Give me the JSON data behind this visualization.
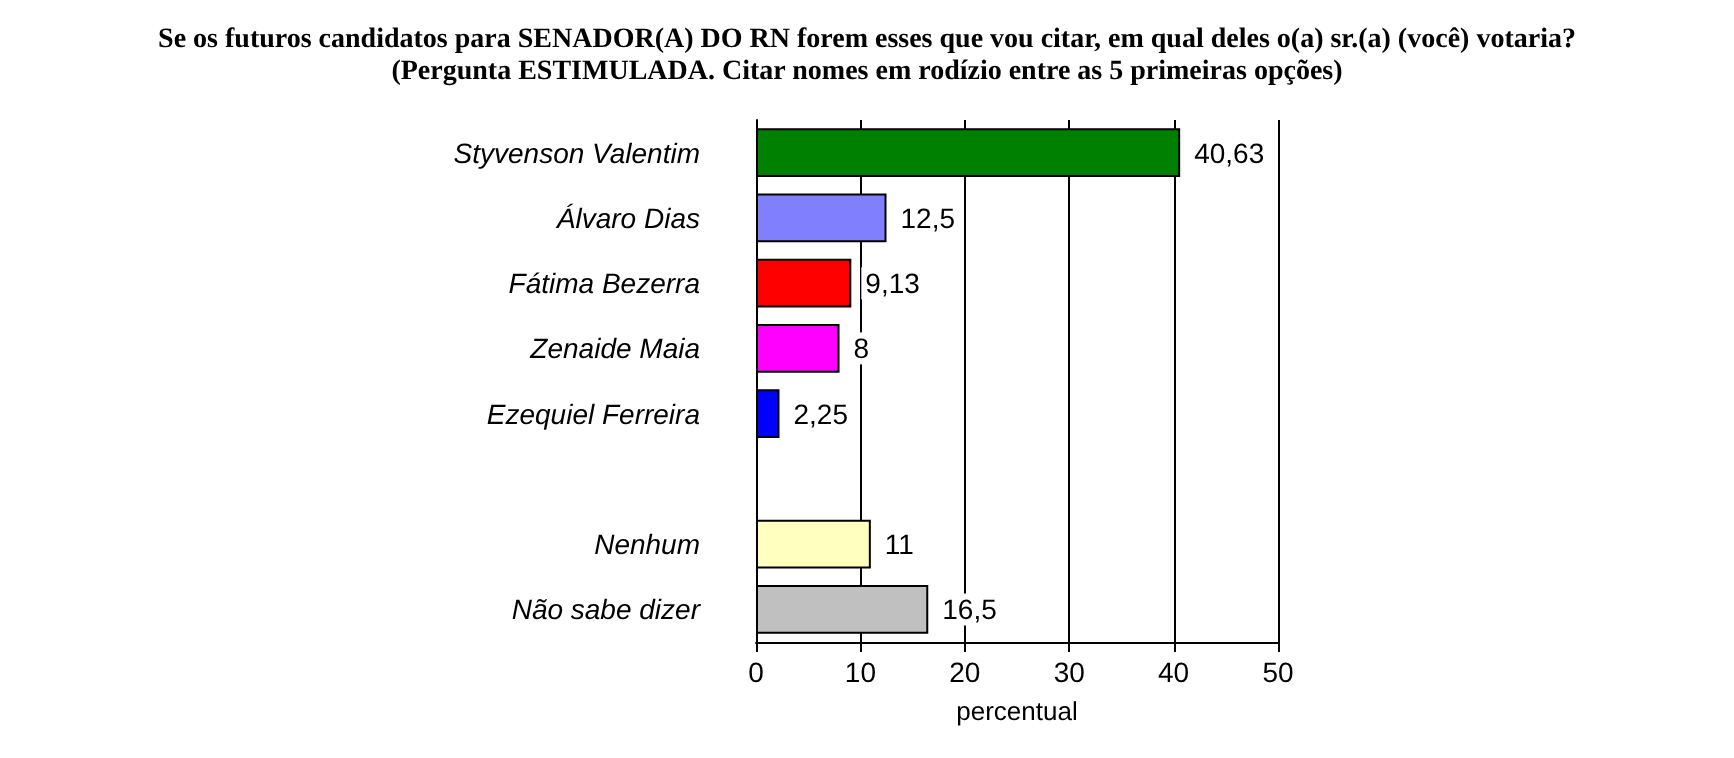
{
  "chart_data": {
    "type": "bar",
    "orientation": "horizontal",
    "title": "Se os futuros candidatos para SENADOR(A) DO RN forem esses que vou citar, em qual deles o(a) sr.(a) (você) votaria?",
    "subtitle": "(Pergunta ESTIMULADA. Citar nomes em rodízio entre as 5 primeiras opções)",
    "categories": [
      "Styvenson Valentim",
      "Álvaro Dias",
      "Fátima Bezerra",
      "Zenaide Maia",
      "Ezequiel Ferreira",
      null,
      "Nenhum",
      "Não sabe dizer"
    ],
    "values": [
      40.63,
      12.5,
      9.13,
      8,
      2.25,
      null,
      11,
      16.5
    ],
    "value_labels": [
      "40,63",
      "12,5",
      "9,13",
      "8",
      "2,25",
      null,
      "11",
      "16,5"
    ],
    "colors": [
      "#008000",
      "#8080ff",
      "#ff0000",
      "#ff00ff",
      "#0000ff",
      "#cccccc",
      "#ffffc0",
      "#c0c0c0"
    ],
    "xlabel": "percentual",
    "xlim": [
      0,
      50
    ],
    "xticks": [
      0,
      10,
      20,
      30,
      40,
      50
    ],
    "grid": "x"
  }
}
